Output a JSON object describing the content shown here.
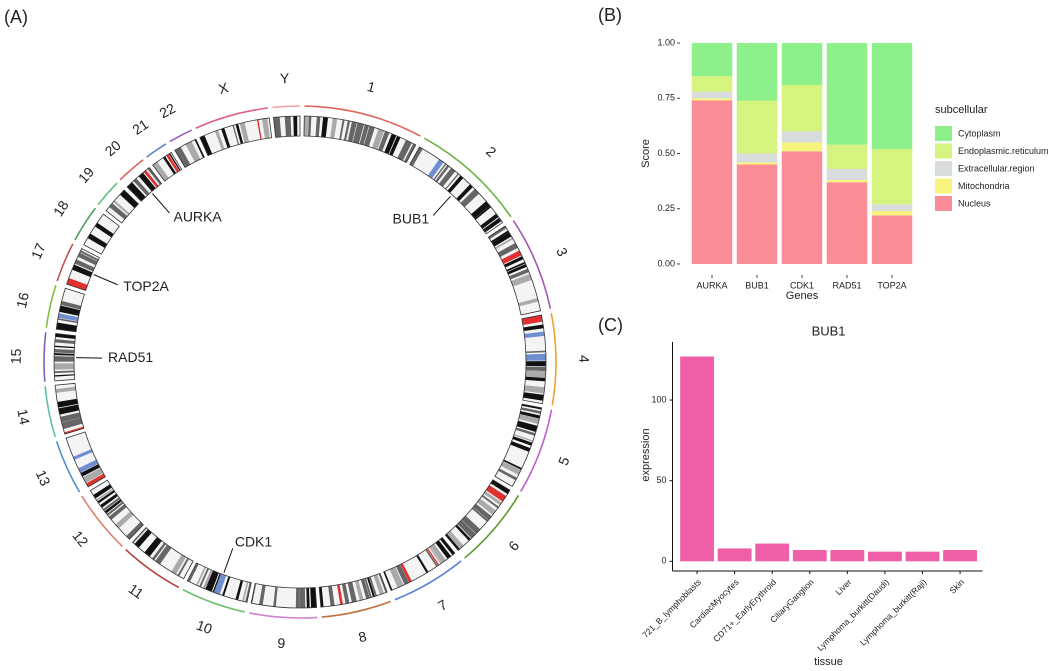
{
  "chart_data": [
    {
      "type": "circos",
      "panel_label": "(A)",
      "chromosomes": [
        "1",
        "2",
        "3",
        "4",
        "5",
        "6",
        "7",
        "8",
        "9",
        "10",
        "11",
        "12",
        "13",
        "14",
        "15",
        "16",
        "17",
        "18",
        "19",
        "20",
        "21",
        "22",
        "X",
        "Y"
      ],
      "colors": [
        "#e0645c",
        "#6db33f",
        "#a05ab0",
        "#f0a030",
        "#c060d0",
        "#5a9a30",
        "#5a7fd0",
        "#c07040",
        "#d080d0",
        "#70c070",
        "#b04040",
        "#e08070",
        "#5090d0",
        "#60c0b0",
        "#8060c0",
        "#80c040",
        "#c05050",
        "#50a060",
        "#60c080",
        "#e06060",
        "#6080d0",
        "#9060c0",
        "#e06080",
        "#f0a0a0"
      ],
      "genes": [
        {
          "label": "BUB1",
          "chromosome": "2"
        },
        {
          "label": "AURKA",
          "chromosome": "20"
        },
        {
          "label": "TOP2A",
          "chromosome": "17"
        },
        {
          "label": "RAD51",
          "chromosome": "15"
        },
        {
          "label": "CDK1",
          "chromosome": "10"
        }
      ]
    },
    {
      "type": "stacked_bar",
      "panel_label": "(B)",
      "categories": [
        "AURKA",
        "BUB1",
        "CDK1",
        "RAD51",
        "TOP2A"
      ],
      "series": [
        {
          "name": "Cytoplasm",
          "color": "#8ef08a",
          "values": [
            0.15,
            0.26,
            0.19,
            0.46,
            0.48
          ]
        },
        {
          "name": "Endoplasmic.reticulum",
          "color": "#d4f47f",
          "values": [
            0.07,
            0.24,
            0.21,
            0.11,
            0.25
          ]
        },
        {
          "name": "Extracellular.region",
          "color": "#d9dcdc",
          "values": [
            0.03,
            0.04,
            0.05,
            0.05,
            0.03
          ]
        },
        {
          "name": "Mitochondria",
          "color": "#f7f47e",
          "values": [
            0.01,
            0.01,
            0.04,
            0.01,
            0.02
          ]
        },
        {
          "name": "Nucleus",
          "color": "#f98c96",
          "values": [
            0.74,
            0.45,
            0.51,
            0.37,
            0.22
          ]
        }
      ],
      "ylim": [
        -0.05,
        1.05
      ],
      "yticks": [
        {
          "value": 0,
          "label": "0.00"
        },
        {
          "value": 0.25,
          "label": "0.25"
        },
        {
          "value": 0.5,
          "label": "0.50"
        },
        {
          "value": 0.75,
          "label": "0.75"
        },
        {
          "value": 1,
          "label": "1.00"
        }
      ],
      "xlabel": "Genes",
      "ylabel": "Score",
      "legend_title": "subcellular",
      "legend": "right"
    },
    {
      "type": "bar",
      "panel_label": "(C)",
      "title": "BUB1",
      "categories": [
        "721_B_lymphoblasts",
        "CardiacMyocytes",
        "CD71+_EarlyErythroid",
        "CiliaryGanglion",
        "Liver",
        "Lymphoma_burkitt(Daudi)",
        "Lymphoma_burkitt(Raji)",
        "Skin"
      ],
      "values": [
        127,
        8,
        11,
        7,
        7,
        6,
        6,
        7
      ],
      "color": "#ef5fa7",
      "ylim": [
        -6,
        136
      ],
      "yticks": [
        0,
        50,
        100
      ],
      "xlabel": "tissue",
      "ylabel": "expression"
    }
  ]
}
